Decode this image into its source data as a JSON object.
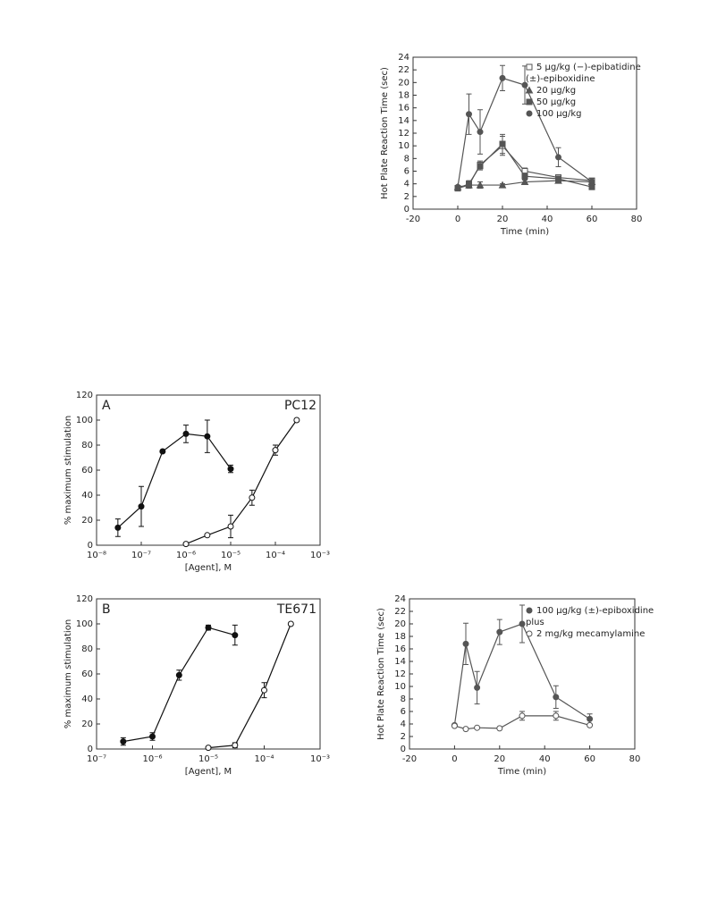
{
  "chart_data": [
    {
      "type": "line",
      "xlabel": "Time (min)",
      "ylabel": "Hot Plate Reaction Time (sec)",
      "xlim": [
        -20,
        80
      ],
      "xticks": [
        -20,
        0,
        20,
        40,
        60,
        80
      ],
      "ylim": [
        0,
        24
      ],
      "yticks": [
        0,
        2,
        4,
        6,
        8,
        10,
        12,
        14,
        16,
        18,
        20,
        22,
        24
      ],
      "x": [
        0,
        5,
        10,
        20,
        30,
        45,
        60
      ],
      "legend_text": "(±)-epiboxidine",
      "color": "#555555",
      "series": [
        {
          "name": "5 μg/kg (−)-epibatidine",
          "marker": "square-open",
          "values": [
            3.3,
            3.8,
            7.0,
            10.0,
            6.0,
            5.0,
            4.5
          ],
          "errors": [
            0.3,
            0.5,
            0.6,
            1.5,
            0.5,
            0.4,
            0.3
          ]
        },
        {
          "name": "20 μg/kg",
          "marker": "triangle",
          "values": [
            3.5,
            3.8,
            3.8,
            3.8,
            4.3,
            4.5,
            4.3
          ],
          "errors": [
            0.2,
            0.3,
            0.5,
            0.2,
            0.3,
            0.3,
            0.2
          ]
        },
        {
          "name": "50 μg/kg",
          "marker": "square",
          "values": [
            3.3,
            4.0,
            6.8,
            10.3,
            5.2,
            4.8,
            3.5
          ],
          "errors": [
            0.3,
            0.5,
            0.6,
            1.5,
            0.5,
            0.4,
            0.3
          ]
        },
        {
          "name": "100 μg/kg",
          "marker": "circle",
          "values": [
            3.5,
            15.0,
            12.2,
            20.7,
            19.6,
            8.2,
            4.3
          ],
          "errors": [
            0.2,
            3.2,
            3.5,
            2.0,
            3.0,
            1.5,
            0.5
          ]
        }
      ]
    },
    {
      "type": "line",
      "panel": "A",
      "cell_line": "PC12",
      "xlabel": "[Agent], M",
      "ylabel": "% maximum stimulation",
      "xscale": "log",
      "xlim": [
        1e-08,
        0.001
      ],
      "xticks": [
        {
          "value": 1e-08,
          "label": "10⁻⁸"
        },
        {
          "value": 1e-07,
          "label": "10⁻⁷"
        },
        {
          "value": 1e-06,
          "label": "10⁻⁶"
        },
        {
          "value": 1e-05,
          "label": "10⁻⁵"
        },
        {
          "value": 0.0001,
          "label": "10⁻⁴"
        },
        {
          "value": 0.001,
          "label": "10⁻³"
        }
      ],
      "ylim": [
        0,
        120
      ],
      "yticks": [
        0,
        20,
        40,
        60,
        80,
        100,
        120
      ],
      "color": "#111111",
      "series": [
        {
          "marker": "circle",
          "x": [
            3e-08,
            1e-07,
            3e-07,
            1e-06,
            3e-06,
            1e-05
          ],
          "values": [
            14,
            31,
            75,
            89,
            87,
            61
          ],
          "errors": [
            7,
            16,
            0,
            7,
            13,
            3
          ]
        },
        {
          "marker": "circle-open",
          "x": [
            1e-06,
            3e-06,
            1e-05,
            3e-05,
            0.0001,
            0.0003
          ],
          "values": [
            1,
            8,
            15,
            38,
            76,
            100
          ],
          "errors": [
            0,
            0,
            9,
            6,
            4,
            0
          ]
        }
      ]
    },
    {
      "type": "line",
      "panel": "B",
      "cell_line": "TE671",
      "xlabel": "[Agent], M",
      "ylabel": "% maximum stimulation",
      "xscale": "log",
      "xlim": [
        1e-07,
        0.001
      ],
      "xticks": [
        {
          "value": 1e-07,
          "label": "10⁻⁷"
        },
        {
          "value": 1e-06,
          "label": "10⁻⁶"
        },
        {
          "value": 1e-05,
          "label": "10⁻⁵"
        },
        {
          "value": 0.0001,
          "label": "10⁻⁴"
        },
        {
          "value": 0.001,
          "label": "10⁻³"
        }
      ],
      "ylim": [
        0,
        120
      ],
      "yticks": [
        0,
        20,
        40,
        60,
        80,
        100,
        120
      ],
      "color": "#111111",
      "series": [
        {
          "marker": "circle",
          "x": [
            3e-07,
            1e-06,
            3e-06,
            1e-05,
            3e-05
          ],
          "values": [
            6,
            10,
            59,
            97,
            91
          ],
          "errors": [
            3,
            3,
            4,
            2,
            8
          ]
        },
        {
          "marker": "circle-open",
          "x": [
            1e-05,
            3e-05,
            0.0001,
            0.0003
          ],
          "values": [
            1,
            3,
            47,
            100
          ],
          "errors": [
            0,
            2,
            6,
            0
          ]
        }
      ]
    },
    {
      "type": "line",
      "xlabel": "Time (min)",
      "ylabel": "Hot Plate Reaction Time (sec)",
      "xlim": [
        -20,
        80
      ],
      "xticks": [
        -20,
        0,
        20,
        40,
        60,
        80
      ],
      "ylim": [
        0,
        24
      ],
      "yticks": [
        0,
        2,
        4,
        6,
        8,
        10,
        12,
        14,
        16,
        18,
        20,
        22,
        24
      ],
      "x": [
        0,
        5,
        10,
        20,
        30,
        45,
        60
      ],
      "legend_text": "plus",
      "color": "#555555",
      "series": [
        {
          "name": "100 μg/kg (±)-epiboxidine",
          "marker": "circle",
          "values": [
            3.8,
            16.8,
            9.8,
            18.7,
            20.0,
            8.3,
            4.8
          ],
          "errors": [
            0,
            3.3,
            2.6,
            2.0,
            3.0,
            1.8,
            0.8
          ]
        },
        {
          "name": "2 mg/kg mecamylamine",
          "marker": "circle-open",
          "values": [
            3.7,
            3.2,
            3.4,
            3.3,
            5.3,
            5.3,
            3.8
          ],
          "errors": [
            0,
            0,
            0,
            0,
            0.7,
            0.7,
            0
          ]
        }
      ]
    }
  ]
}
